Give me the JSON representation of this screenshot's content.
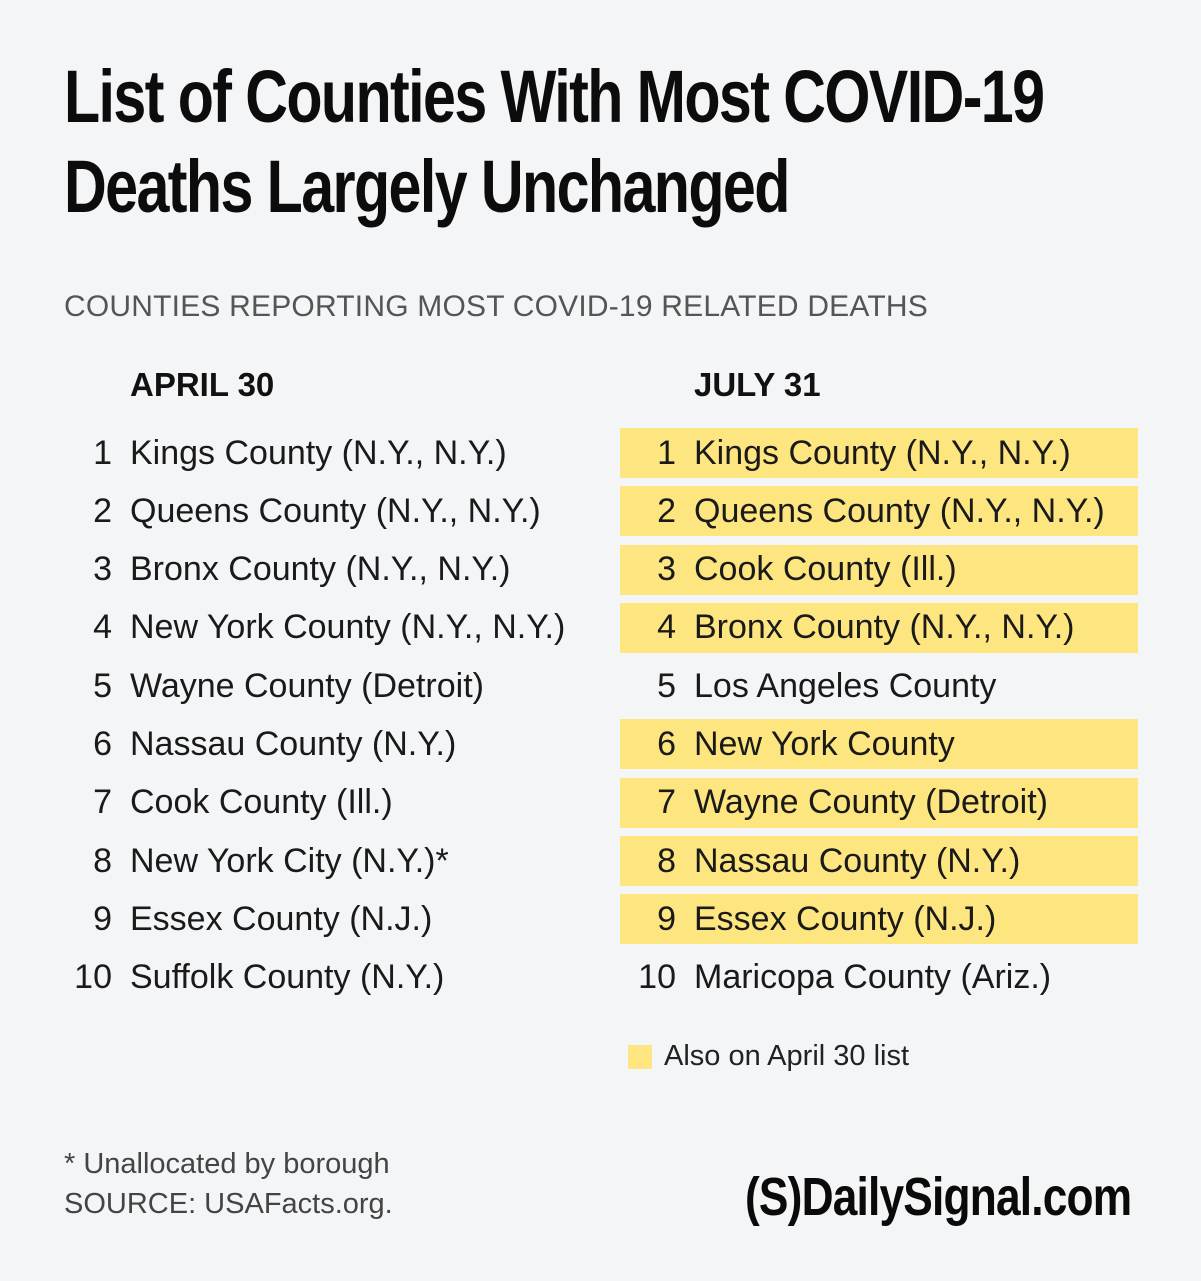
{
  "title": {
    "line1": "List of Counties With Most COVID-19",
    "line2": "Deaths Largely Unchanged"
  },
  "subtitle": "COUNTIES REPORTING MOST COVID-19 RELATED DEATHS",
  "highlight_color": "#fde57f",
  "april": {
    "header": "APRIL 30",
    "rows": [
      {
        "rank": "1",
        "name": "Kings County (N.Y., N.Y.)"
      },
      {
        "rank": "2",
        "name": "Queens County (N.Y., N.Y.)"
      },
      {
        "rank": "3",
        "name": "Bronx County (N.Y., N.Y.)"
      },
      {
        "rank": "4",
        "name": "New York County (N.Y., N.Y.)"
      },
      {
        "rank": "5",
        "name": "Wayne County (Detroit)"
      },
      {
        "rank": "6",
        "name": "Nassau County (N.Y.)"
      },
      {
        "rank": "7",
        "name": "Cook County (Ill.)"
      },
      {
        "rank": "8",
        "name": "New York City (N.Y.)*"
      },
      {
        "rank": "9",
        "name": "Essex County (N.J.)"
      },
      {
        "rank": "10",
        "name": "Suffolk County (N.Y.)"
      }
    ]
  },
  "july": {
    "header": "JULY 31",
    "rows": [
      {
        "rank": "1",
        "name": "Kings County (N.Y., N.Y.)",
        "also_on_april": true
      },
      {
        "rank": "2",
        "name": "Queens County (N.Y., N.Y.)",
        "also_on_april": true
      },
      {
        "rank": "3",
        "name": "Cook County (Ill.)",
        "also_on_april": true
      },
      {
        "rank": "4",
        "name": "Bronx County (N.Y., N.Y.)",
        "also_on_april": true
      },
      {
        "rank": "5",
        "name": "Los Angeles County",
        "also_on_april": false
      },
      {
        "rank": "6",
        "name": "New York County",
        "also_on_april": true
      },
      {
        "rank": "7",
        "name": "Wayne County (Detroit)",
        "also_on_april": true
      },
      {
        "rank": "8",
        "name": "Nassau County (N.Y.)",
        "also_on_april": true
      },
      {
        "rank": "9",
        "name": "Essex County (N.J.)",
        "also_on_april": true
      },
      {
        "rank": "10",
        "name": "Maricopa County (Ariz.)",
        "also_on_april": false
      }
    ]
  },
  "legend": "Also on April 30 list",
  "footnote": "* Unallocated by borough",
  "source": "SOURCE: USAFacts.org.",
  "logo": "(S)DailySignal.com"
}
